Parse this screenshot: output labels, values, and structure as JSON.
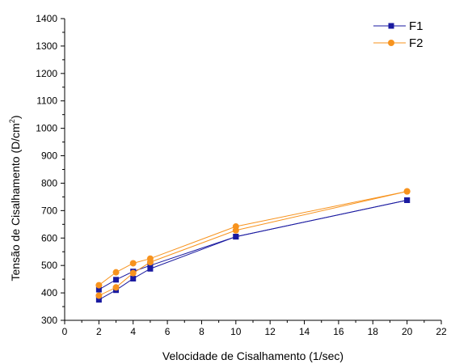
{
  "chart_data": {
    "type": "line",
    "xlabel": "Velocidade de Cisalhamento (1/sec)",
    "ylabel": "Tensão de Cisalhamento (D/cm²)",
    "ylabel_main": "Tensão de Cisalhamento  (D/cm",
    "ylabel_sup": "2",
    "ylabel_end": ")",
    "xlim": [
      0,
      22
    ],
    "ylim": [
      300,
      1400
    ],
    "xticks": [
      0,
      2,
      4,
      6,
      8,
      10,
      12,
      14,
      16,
      18,
      20,
      22
    ],
    "yticks": [
      300,
      400,
      500,
      600,
      700,
      800,
      900,
      1000,
      1100,
      1200,
      1300,
      1400
    ],
    "grid": false,
    "legend_position": "top-right",
    "series": [
      {
        "name": "F1",
        "color": "#1a1aa0",
        "marker": "square",
        "lines": [
          {
            "x": [
              2,
              3,
              4,
              5,
              10,
              20
            ],
            "y": [
              375,
              410,
              452,
              488,
              605,
              738
            ]
          },
          {
            "x": [
              2,
              3,
              4,
              5,
              10,
              20
            ],
            "y": [
              412,
              448,
              478,
              500,
              605,
              738
            ]
          }
        ]
      },
      {
        "name": "F2",
        "color": "#f7931e",
        "marker": "circle",
        "lines": [
          {
            "x": [
              2,
              3,
              4,
              5,
              10,
              20
            ],
            "y": [
              390,
              420,
              472,
              512,
              628,
              770
            ]
          },
          {
            "x": [
              2,
              3,
              4,
              5,
              10,
              20
            ],
            "y": [
              428,
              475,
              508,
              525,
              642,
              770
            ]
          }
        ]
      }
    ]
  }
}
